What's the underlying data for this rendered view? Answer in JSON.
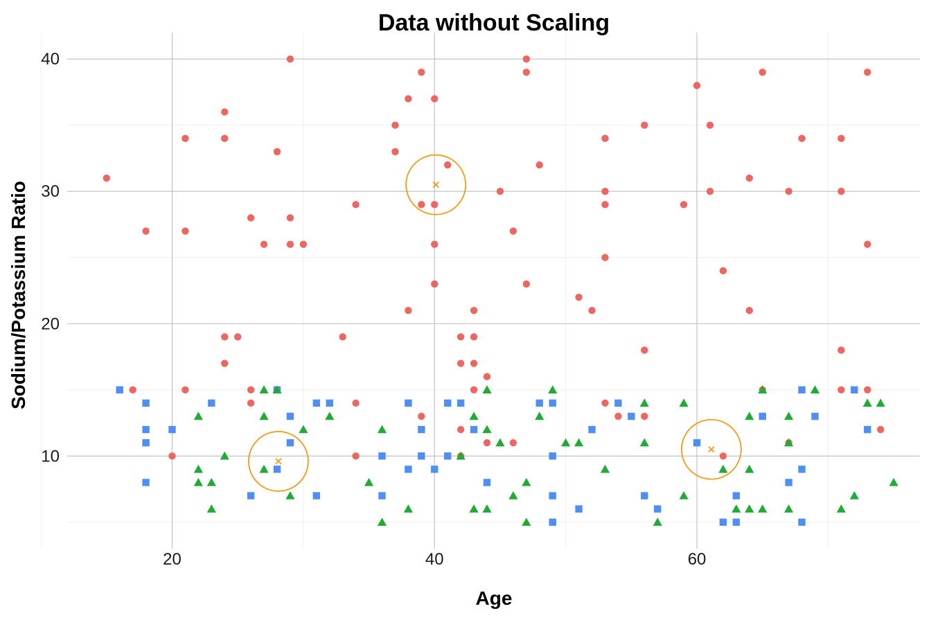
{
  "chart_data": {
    "type": "scatter",
    "title": "Data without Scaling",
    "xlabel": "Age",
    "ylabel": "Sodium/Potassium Ratio",
    "xlim": [
      12,
      77
    ],
    "ylim": [
      3,
      42
    ],
    "xticks": [
      20,
      40,
      60
    ],
    "yticks": [
      10,
      20,
      30,
      40
    ],
    "xminor": [
      10,
      30,
      50,
      70
    ],
    "yminor": [
      5,
      15,
      25,
      35
    ],
    "grid": true,
    "colors": {
      "red": "#ef6560",
      "green": "#1fab34",
      "blue": "#4f8ef6",
      "centroid": "#f59a16"
    },
    "series": [
      {
        "name": "red",
        "shape": "circle",
        "points": [
          [
            15,
            31
          ],
          [
            17,
            15
          ],
          [
            18,
            27
          ],
          [
            20,
            10
          ],
          [
            21,
            34
          ],
          [
            21,
            27
          ],
          [
            21,
            15
          ],
          [
            23,
            14
          ],
          [
            24,
            36
          ],
          [
            24,
            34
          ],
          [
            24,
            19
          ],
          [
            24,
            17
          ],
          [
            25,
            19
          ],
          [
            26,
            28
          ],
          [
            26,
            15
          ],
          [
            26,
            14
          ],
          [
            27,
            26
          ],
          [
            28,
            33
          ],
          [
            28,
            15
          ],
          [
            29,
            40
          ],
          [
            29,
            28
          ],
          [
            29,
            26
          ],
          [
            30,
            26
          ],
          [
            33,
            19
          ],
          [
            34,
            29
          ],
          [
            34,
            14
          ],
          [
            34,
            10
          ],
          [
            37,
            35
          ],
          [
            37,
            33
          ],
          [
            38,
            37
          ],
          [
            38,
            21
          ],
          [
            39,
            39
          ],
          [
            39,
            29
          ],
          [
            39,
            13
          ],
          [
            40,
            37
          ],
          [
            40,
            29
          ],
          [
            40,
            26
          ],
          [
            40,
            23
          ],
          [
            41,
            32
          ],
          [
            42,
            19
          ],
          [
            42,
            17
          ],
          [
            42,
            12
          ],
          [
            42,
            10
          ],
          [
            43,
            21
          ],
          [
            43,
            19
          ],
          [
            43,
            17
          ],
          [
            43,
            15
          ],
          [
            44,
            16
          ],
          [
            44,
            11
          ],
          [
            45,
            30
          ],
          [
            46,
            27
          ],
          [
            46,
            11
          ],
          [
            47,
            40
          ],
          [
            47,
            39
          ],
          [
            47,
            23
          ],
          [
            48,
            32
          ],
          [
            51,
            22
          ],
          [
            52,
            21
          ],
          [
            53,
            34
          ],
          [
            53,
            30
          ],
          [
            53,
            29
          ],
          [
            53,
            25
          ],
          [
            53,
            14
          ],
          [
            54,
            13
          ],
          [
            56,
            35
          ],
          [
            56,
            18
          ],
          [
            56,
            13
          ],
          [
            59,
            29
          ],
          [
            60,
            38
          ],
          [
            61,
            35
          ],
          [
            61,
            30
          ],
          [
            62,
            24
          ],
          [
            62,
            10
          ],
          [
            64,
            31
          ],
          [
            64,
            21
          ],
          [
            65,
            39
          ],
          [
            65,
            15
          ],
          [
            67,
            30
          ],
          [
            67,
            11
          ],
          [
            68,
            34
          ],
          [
            71,
            34
          ],
          [
            71,
            30
          ],
          [
            71,
            18
          ],
          [
            71,
            15
          ],
          [
            73,
            39
          ],
          [
            73,
            26
          ],
          [
            73,
            15
          ],
          [
            74,
            12
          ]
        ]
      },
      {
        "name": "blue",
        "shape": "square",
        "points": [
          [
            16,
            15
          ],
          [
            18,
            14
          ],
          [
            18,
            12
          ],
          [
            18,
            11
          ],
          [
            18,
            8
          ],
          [
            20,
            12
          ],
          [
            23,
            14
          ],
          [
            26,
            7
          ],
          [
            28,
            15
          ],
          [
            28,
            9
          ],
          [
            29,
            13
          ],
          [
            29,
            11
          ],
          [
            31,
            14
          ],
          [
            31,
            7
          ],
          [
            32,
            14
          ],
          [
            36,
            10
          ],
          [
            36,
            7
          ],
          [
            38,
            14
          ],
          [
            38,
            9
          ],
          [
            39,
            12
          ],
          [
            39,
            10
          ],
          [
            40,
            9
          ],
          [
            41,
            14
          ],
          [
            41,
            10
          ],
          [
            42,
            14
          ],
          [
            43,
            12
          ],
          [
            44,
            8
          ],
          [
            48,
            14
          ],
          [
            49,
            14
          ],
          [
            49,
            10
          ],
          [
            49,
            7
          ],
          [
            49,
            5
          ],
          [
            51,
            6
          ],
          [
            52,
            12
          ],
          [
            54,
            14
          ],
          [
            55,
            13
          ],
          [
            56,
            7
          ],
          [
            57,
            6
          ],
          [
            60,
            11
          ],
          [
            62,
            5
          ],
          [
            63,
            7
          ],
          [
            63,
            5
          ],
          [
            65,
            13
          ],
          [
            67,
            8
          ],
          [
            68,
            15
          ],
          [
            68,
            9
          ],
          [
            68,
            5
          ],
          [
            69,
            13
          ],
          [
            72,
            15
          ],
          [
            73,
            12
          ]
        ]
      },
      {
        "name": "green",
        "shape": "triangle",
        "points": [
          [
            22,
            13
          ],
          [
            22,
            9
          ],
          [
            22,
            8
          ],
          [
            23,
            8
          ],
          [
            23,
            6
          ],
          [
            24,
            10
          ],
          [
            27,
            15
          ],
          [
            27,
            13
          ],
          [
            27,
            9
          ],
          [
            28,
            15
          ],
          [
            29,
            7
          ],
          [
            30,
            12
          ],
          [
            32,
            13
          ],
          [
            35,
            8
          ],
          [
            36,
            12
          ],
          [
            36,
            5
          ],
          [
            38,
            6
          ],
          [
            42,
            10
          ],
          [
            43,
            13
          ],
          [
            43,
            6
          ],
          [
            44,
            15
          ],
          [
            44,
            12
          ],
          [
            44,
            6
          ],
          [
            45,
            11
          ],
          [
            46,
            7
          ],
          [
            47,
            8
          ],
          [
            47,
            5
          ],
          [
            48,
            13
          ],
          [
            49,
            15
          ],
          [
            50,
            11
          ],
          [
            51,
            11
          ],
          [
            53,
            9
          ],
          [
            56,
            14
          ],
          [
            56,
            11
          ],
          [
            57,
            5
          ],
          [
            59,
            14
          ],
          [
            59,
            7
          ],
          [
            62,
            9
          ],
          [
            63,
            6
          ],
          [
            64,
            13
          ],
          [
            64,
            9
          ],
          [
            64,
            6
          ],
          [
            65,
            15
          ],
          [
            65,
            6
          ],
          [
            67,
            13
          ],
          [
            67,
            11
          ],
          [
            67,
            6
          ],
          [
            69,
            15
          ],
          [
            71,
            6
          ],
          [
            72,
            7
          ],
          [
            73,
            14
          ],
          [
            74,
            14
          ],
          [
            75,
            8
          ]
        ]
      }
    ],
    "centroids": [
      {
        "x": 28.1,
        "y": 9.6
      },
      {
        "x": 40.1,
        "y": 30.5
      },
      {
        "x": 61.1,
        "y": 10.5
      }
    ]
  }
}
